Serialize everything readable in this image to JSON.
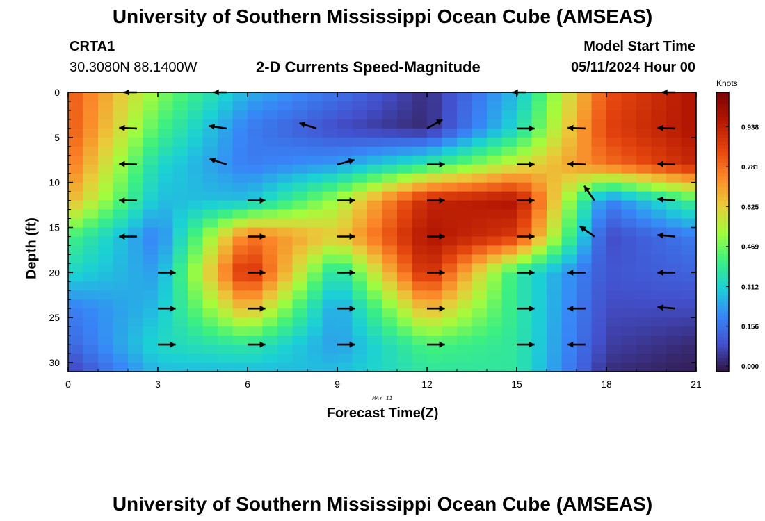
{
  "header": {
    "title_top": "University of Southern Mississippi Ocean Cube (AMSEAS)",
    "title_bottom": "University of Southern Mississippi Ocean Cube (AMSEAS)",
    "station": "CRTA1",
    "coords": "30.3080N  88.1400W",
    "subtitle": "2-D Currents Speed-Magnitude",
    "model_start_label": "Model Start Time",
    "model_start_value": "05/11/2024 Hour 00"
  },
  "chart_data": {
    "type": "heatmap",
    "xlabel": "Forecast Time(Z)",
    "ylabel": "Depth (ft)",
    "date_label": "MAY 11",
    "x_ticks": [
      "0",
      "3",
      "6",
      "9",
      "12",
      "15",
      "18",
      "21"
    ],
    "y_ticks": [
      "0",
      "5",
      "10",
      "15",
      "20",
      "25",
      "30"
    ],
    "xlim": [
      0,
      21
    ],
    "ylim": [
      31,
      0
    ],
    "colorbar": {
      "label": "Knots",
      "ticks": [
        "0.000",
        "0.156",
        "0.312",
        "0.469",
        "0.625",
        "0.781",
        "0.938"
      ],
      "range": [
        0,
        1.094
      ]
    },
    "speed_knots": {
      "hours": [
        0,
        3,
        6,
        9,
        12,
        15,
        18,
        21
      ],
      "depths_ft": [
        0,
        4,
        8,
        12,
        16,
        20,
        24,
        28,
        31
      ],
      "values": [
        [
          0.85,
          0.52,
          0.28,
          0.18,
          0.05,
          0.3,
          0.85,
          1.0
        ],
        [
          0.85,
          0.45,
          0.2,
          0.1,
          0.04,
          0.35,
          0.88,
          1.0
        ],
        [
          0.8,
          0.35,
          0.2,
          0.25,
          0.4,
          0.6,
          0.8,
          0.95
        ],
        [
          0.7,
          0.3,
          0.3,
          0.55,
          0.95,
          1.0,
          0.2,
          0.45
        ],
        [
          0.45,
          0.2,
          0.8,
          0.65,
          1.0,
          0.9,
          0.1,
          0.2
        ],
        [
          0.35,
          0.25,
          0.95,
          0.35,
          0.95,
          0.4,
          0.12,
          0.15
        ],
        [
          0.2,
          0.3,
          0.7,
          0.25,
          0.7,
          0.4,
          0.1,
          0.1
        ],
        [
          0.15,
          0.35,
          0.4,
          0.25,
          0.45,
          0.4,
          0.08,
          0.04
        ],
        [
          0.08,
          0.3,
          0.3,
          0.3,
          0.4,
          0.4,
          0.05,
          0.02
        ]
      ]
    },
    "vectors": [
      {
        "t": 2.3,
        "d": 0,
        "dir": 180,
        "mag": 0.6
      },
      {
        "t": 5.3,
        "d": 0,
        "dir": 180,
        "mag": 0.6
      },
      {
        "t": 15.3,
        "d": 0,
        "dir": 180,
        "mag": 0.6
      },
      {
        "t": 20.3,
        "d": 0,
        "dir": 180,
        "mag": 0.6
      },
      {
        "t": 2.3,
        "d": 4,
        "dir": 178,
        "mag": 0.8
      },
      {
        "t": 5.3,
        "d": 4,
        "dir": 172,
        "mag": 0.8
      },
      {
        "t": 8.3,
        "d": 4,
        "dir": 162,
        "mag": 0.8
      },
      {
        "t": 12.0,
        "d": 4,
        "dir": 30,
        "mag": 0.8
      },
      {
        "t": 15.0,
        "d": 4,
        "dir": 0,
        "mag": 0.8
      },
      {
        "t": 17.3,
        "d": 4,
        "dir": 178,
        "mag": 0.8
      },
      {
        "t": 20.3,
        "d": 4,
        "dir": 178,
        "mag": 0.8
      },
      {
        "t": 2.3,
        "d": 8,
        "dir": 178,
        "mag": 0.8
      },
      {
        "t": 5.3,
        "d": 8,
        "dir": 162,
        "mag": 0.8
      },
      {
        "t": 9.0,
        "d": 8,
        "dir": 15,
        "mag": 0.8
      },
      {
        "t": 12.0,
        "d": 8,
        "dir": 0,
        "mag": 0.8
      },
      {
        "t": 15.0,
        "d": 8,
        "dir": 0,
        "mag": 0.8
      },
      {
        "t": 17.3,
        "d": 8,
        "dir": 178,
        "mag": 0.8
      },
      {
        "t": 20.3,
        "d": 8,
        "dir": 178,
        "mag": 0.8
      },
      {
        "t": 2.3,
        "d": 12,
        "dir": 180,
        "mag": 0.8
      },
      {
        "t": 6.0,
        "d": 12,
        "dir": 0,
        "mag": 0.8
      },
      {
        "t": 9.0,
        "d": 12,
        "dir": 0,
        "mag": 0.8
      },
      {
        "t": 12.0,
        "d": 12,
        "dir": 0,
        "mag": 0.8
      },
      {
        "t": 15.0,
        "d": 12,
        "dir": 0,
        "mag": 0.8
      },
      {
        "t": 17.6,
        "d": 12,
        "dir": 125,
        "mag": 0.8
      },
      {
        "t": 20.3,
        "d": 12,
        "dir": 175,
        "mag": 0.8
      },
      {
        "t": 2.3,
        "d": 16,
        "dir": 180,
        "mag": 0.8
      },
      {
        "t": 6.0,
        "d": 16,
        "dir": 0,
        "mag": 0.8
      },
      {
        "t": 9.0,
        "d": 16,
        "dir": 0,
        "mag": 0.8
      },
      {
        "t": 12.0,
        "d": 16,
        "dir": 0,
        "mag": 0.8
      },
      {
        "t": 15.0,
        "d": 16,
        "dir": 0,
        "mag": 0.8
      },
      {
        "t": 17.6,
        "d": 16,
        "dir": 145,
        "mag": 0.8
      },
      {
        "t": 20.3,
        "d": 16,
        "dir": 175,
        "mag": 0.8
      },
      {
        "t": 3.0,
        "d": 20,
        "dir": 0,
        "mag": 0.8
      },
      {
        "t": 6.0,
        "d": 20,
        "dir": 0,
        "mag": 0.8
      },
      {
        "t": 9.0,
        "d": 20,
        "dir": 0,
        "mag": 0.8
      },
      {
        "t": 12.0,
        "d": 20,
        "dir": 0,
        "mag": 0.8
      },
      {
        "t": 15.0,
        "d": 20,
        "dir": 0,
        "mag": 0.8
      },
      {
        "t": 17.3,
        "d": 20,
        "dir": 180,
        "mag": 0.8
      },
      {
        "t": 20.3,
        "d": 20,
        "dir": 180,
        "mag": 0.8
      },
      {
        "t": 3.0,
        "d": 24,
        "dir": 0,
        "mag": 0.8
      },
      {
        "t": 6.0,
        "d": 24,
        "dir": 0,
        "mag": 0.8
      },
      {
        "t": 9.0,
        "d": 24,
        "dir": 0,
        "mag": 0.8
      },
      {
        "t": 12.0,
        "d": 24,
        "dir": 0,
        "mag": 0.8
      },
      {
        "t": 15.0,
        "d": 24,
        "dir": 0,
        "mag": 0.8
      },
      {
        "t": 17.3,
        "d": 24,
        "dir": 180,
        "mag": 0.8
      },
      {
        "t": 20.3,
        "d": 24,
        "dir": 175,
        "mag": 0.8
      },
      {
        "t": 3.0,
        "d": 28,
        "dir": 0,
        "mag": 0.8
      },
      {
        "t": 6.0,
        "d": 28,
        "dir": 0,
        "mag": 0.8
      },
      {
        "t": 9.0,
        "d": 28,
        "dir": 0,
        "mag": 0.8
      },
      {
        "t": 12.0,
        "d": 28,
        "dir": 0,
        "mag": 0.8
      },
      {
        "t": 15.0,
        "d": 28,
        "dir": 0,
        "mag": 0.8
      },
      {
        "t": 17.3,
        "d": 28,
        "dir": 180,
        "mag": 0.8
      }
    ]
  }
}
